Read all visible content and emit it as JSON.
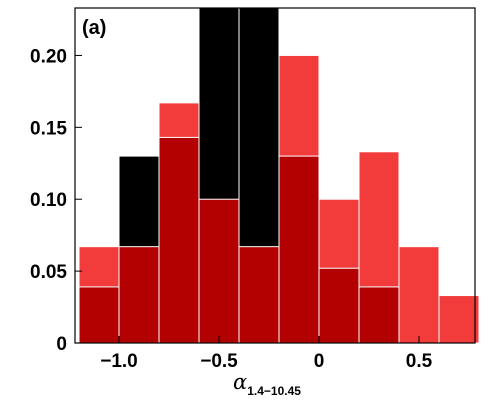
{
  "chart_data": {
    "type": "bar",
    "panel_label": "(a)",
    "xlabel": {
      "symbol": "α",
      "subscript": "1.4−10.45"
    },
    "xlim": [
      -1.22,
      0.78
    ],
    "ylim": [
      0,
      0.233
    ],
    "x_ticks": [
      {
        "value": -1.0,
        "label": "−1.0"
      },
      {
        "value": -0.5,
        "label": "−0.5"
      },
      {
        "value": 0,
        "label": "0"
      },
      {
        "value": 0.5,
        "label": "0.5"
      }
    ],
    "y_ticks": [
      {
        "value": 0,
        "label": "0"
      },
      {
        "value": 0.05,
        "label": "0.05"
      },
      {
        "value": 0.1,
        "label": "0.10"
      },
      {
        "value": 0.15,
        "label": "0.15"
      },
      {
        "value": 0.2,
        "label": "0.20"
      }
    ],
    "bin_width": 0.2,
    "series": [
      {
        "color": "#000000",
        "bins": [
          {
            "x0": -1.0,
            "value": 0.13
          },
          {
            "x0": -0.6,
            "value": 0.233
          },
          {
            "x0": -0.4,
            "value": 0.233
          }
        ]
      },
      {
        "color": "#f23c3c",
        "bins": [
          {
            "x0": -1.2,
            "value": 0.067
          },
          {
            "x0": -0.8,
            "value": 0.167
          },
          {
            "x0": -0.2,
            "value": 0.2
          },
          {
            "x0": 0.0,
            "value": 0.1
          },
          {
            "x0": 0.2,
            "value": 0.133
          },
          {
            "x0": 0.4,
            "value": 0.067
          },
          {
            "x0": 0.6,
            "value": 0.033
          }
        ]
      },
      {
        "color": "#b30000",
        "bins": [
          {
            "x0": -1.2,
            "value": 0.039
          },
          {
            "x0": -1.0,
            "value": 0.067
          },
          {
            "x0": -0.8,
            "value": 0.143
          },
          {
            "x0": -0.6,
            "value": 0.1
          },
          {
            "x0": -0.4,
            "value": 0.067
          },
          {
            "x0": -0.2,
            "value": 0.13
          },
          {
            "x0": 0.0,
            "value": 0.052
          },
          {
            "x0": 0.2,
            "value": 0.039
          }
        ]
      }
    ]
  }
}
